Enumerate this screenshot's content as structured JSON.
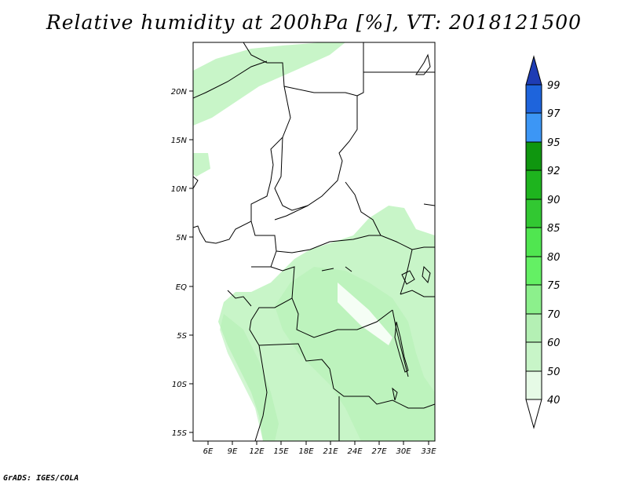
{
  "title": "Relative humidity at 200hPa [%], VT: 2018121500",
  "credit": "GrADS: IGES/COLA",
  "map": {
    "lat_labels": [
      "20N",
      "15N",
      "10N",
      "5N",
      "EQ",
      "5S",
      "10S",
      "15S"
    ],
    "lon_labels": [
      "6E",
      "9E",
      "12E",
      "15E",
      "18E",
      "21E",
      "24E",
      "27E",
      "30E",
      "33E"
    ],
    "lon_range": [
      4.5,
      33.5
    ],
    "lat_range": [
      -16,
      25
    ]
  },
  "colorbar": {
    "levels": [
      "99",
      "97",
      "95",
      "92",
      "90",
      "85",
      "80",
      "75",
      "70",
      "60",
      "50",
      "40"
    ],
    "colors": [
      "#1e64dc",
      "#3c96f5",
      "#0f960f",
      "#1eb41e",
      "#32c832",
      "#50e650",
      "#64f064",
      "#8cf08c",
      "#b4f0b4",
      "#c8f5c8",
      "#e6fae6",
      "#ffffff"
    ],
    "over_color": "#1e3cb4"
  },
  "colors": {
    "field_light": "#c8f5c8",
    "field_mid": "#b4f0b4",
    "land_outline": "#000000"
  }
}
